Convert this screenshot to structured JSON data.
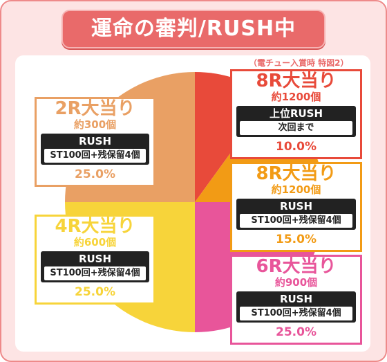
{
  "title": "運命の審判/RUSH中",
  "note": "（電チュー入賞時 特図2）",
  "colors": {
    "frame_bg": "#fde4e4",
    "title_bg": "#e96a6a",
    "slice_8r_a": "#e84a3a",
    "slice_8r_b": "#f29b15",
    "slice_6r": "#e8559a",
    "slice_4r": "#f7d43a",
    "slice_2r": "#e9a064"
  },
  "chart_data": {
    "type": "pie",
    "slices": [
      {
        "label": "8R大当り",
        "payout": "約1200個",
        "mode": "上位RUSH",
        "condition": "次回まで",
        "value": 10.0,
        "pct_label": "10.0%",
        "color": "#e84a3a"
      },
      {
        "label": "8R大当り",
        "payout": "約1200個",
        "mode": "RUSH",
        "condition": "ST100回+残保留4個",
        "value": 15.0,
        "pct_label": "15.0%",
        "color": "#f29b15"
      },
      {
        "label": "6R大当り",
        "payout": "約900個",
        "mode": "RUSH",
        "condition": "ST100回+残保留4個",
        "value": 25.0,
        "pct_label": "25.0%",
        "color": "#e8559a"
      },
      {
        "label": "4R大当り",
        "payout": "約600個",
        "mode": "RUSH",
        "condition": "ST100回+残保留4個",
        "value": 25.0,
        "pct_label": "25.0%",
        "color": "#f7d43a"
      },
      {
        "label": "2R大当り",
        "payout": "約300個",
        "mode": "RUSH",
        "condition": "ST100回+残保留4個",
        "value": 25.0,
        "pct_label": "25.0%",
        "color": "#e9a064"
      }
    ]
  }
}
